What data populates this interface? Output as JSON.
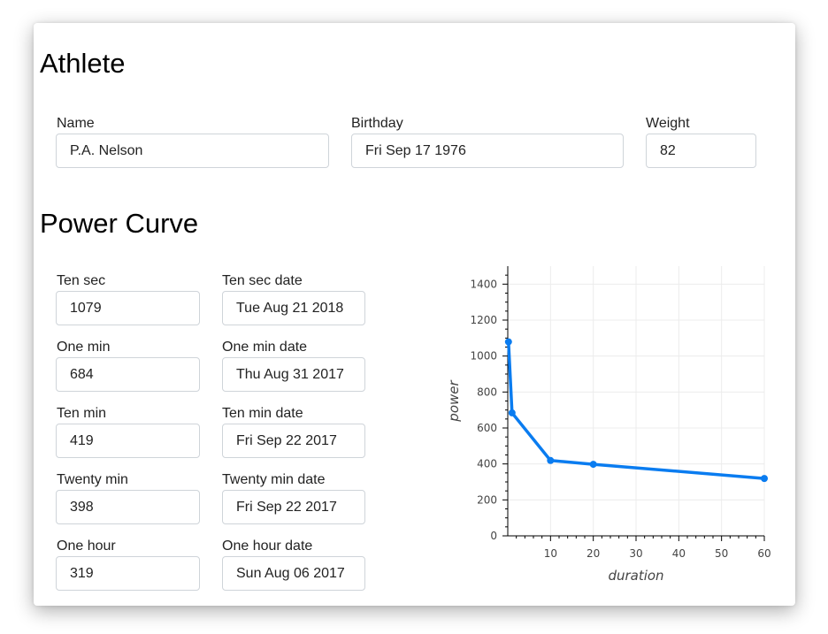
{
  "athlete": {
    "title": "Athlete",
    "name_label": "Name",
    "name_value": "P.A. Nelson",
    "birthday_label": "Birthday",
    "birthday_value": "Fri Sep 17 1976",
    "weight_label": "Weight",
    "weight_value": "82"
  },
  "power_curve": {
    "title": "Power Curve",
    "rows": [
      {
        "label": "Ten sec",
        "value": "1079",
        "date_label": "Ten sec date",
        "date_value": "Tue Aug 21 2018"
      },
      {
        "label": "One min",
        "value": "684",
        "date_label": "One min date",
        "date_value": "Thu Aug 31 2017"
      },
      {
        "label": "Ten min",
        "value": "419",
        "date_label": "Ten min date",
        "date_value": "Fri Sep 22 2017"
      },
      {
        "label": "Twenty min",
        "value": "398",
        "date_label": "Twenty min date",
        "date_value": "Fri Sep 22 2017"
      },
      {
        "label": "One hour",
        "value": "319",
        "date_label": "One hour date",
        "date_value": "Sun Aug 06 2017"
      }
    ]
  },
  "chart_data": {
    "type": "line",
    "xlabel": "duration",
    "ylabel": "power",
    "x": [
      0.1667,
      1,
      10,
      20,
      60
    ],
    "y": [
      1079,
      684,
      419,
      398,
      319
    ],
    "xlim": [
      0,
      60
    ],
    "ylim": [
      0,
      1500
    ],
    "xticks": [
      "10",
      "20",
      "30",
      "40",
      "50",
      "60"
    ],
    "yticks": [
      "0",
      "200",
      "400",
      "600",
      "800",
      "1000",
      "1200",
      "1400"
    ],
    "grid": true,
    "line_color": "#0a7cf0"
  }
}
